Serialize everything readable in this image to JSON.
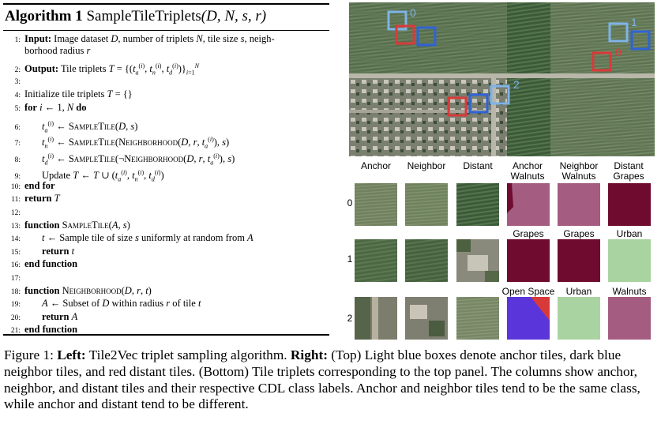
{
  "algorithm": {
    "label": "Algorithm 1",
    "name": "SampleTileTriplets",
    "signature": "(D, N, s, r)",
    "lines": [
      {
        "n": "1:",
        "text": "Input: Image dataset D, number of triplets N, tile size s, neigh-"
      },
      {
        "n": "",
        "text": "borhood radius r"
      },
      {
        "n": "2:",
        "text": "Output: Tile triplets T = {(t_a^(i), t_n^(i), t_d^(i))}_{i=1}^N"
      },
      {
        "n": "3:",
        "text": ""
      },
      {
        "n": "4:",
        "text": "Initialize tile triplets T = {}"
      },
      {
        "n": "5:",
        "text": "for i ← 1, N do"
      },
      {
        "n": "6:",
        "text": "t_a^(i) ← SampleTile(D, s)"
      },
      {
        "n": "7:",
        "text": "t_n^(i) ← SampleTile(Neighborhood(D, r, t_a^(i)), s)"
      },
      {
        "n": "8:",
        "text": "t_d^(i) ← SampleTile(¬Neighborhood(D, r, t_a^(i)), s)"
      },
      {
        "n": "9:",
        "text": "Update T ← T ∪ (t_a^(i), t_n^(i), t_d^(i))"
      },
      {
        "n": "10:",
        "text": "end for"
      },
      {
        "n": "11:",
        "text": "return T"
      },
      {
        "n": "12:",
        "text": ""
      },
      {
        "n": "13:",
        "text": "function SampleTile(A, s)"
      },
      {
        "n": "14:",
        "text": "t ← Sample tile of size s uniformly at random from A"
      },
      {
        "n": "15:",
        "text": "return t"
      },
      {
        "n": "16:",
        "text": "end function"
      },
      {
        "n": "17:",
        "text": ""
      },
      {
        "n": "18:",
        "text": "function Neighborhood(D, r, t)"
      },
      {
        "n": "19:",
        "text": "A ← Subset of D within radius r of tile t"
      },
      {
        "n": "20:",
        "text": "return A"
      },
      {
        "n": "21:",
        "text": "end function"
      }
    ]
  },
  "map": {
    "box_labels": [
      "0",
      "1",
      "0",
      "2"
    ],
    "colors": {
      "anchor": "#7fb3e8",
      "neighbor": "#2f63d6",
      "distant": "#d83a3a"
    }
  },
  "tiles": {
    "headers": [
      "Anchor",
      "Neighbor",
      "Distant",
      "Anchor Walnuts",
      "Neighbor Walnuts",
      "Distant Grapes"
    ],
    "row_labels": [
      "0",
      "1",
      "2"
    ],
    "class_labels_row1": [
      "Grapes",
      "Grapes",
      "Urban"
    ],
    "class_labels_row2": [
      "Open Space",
      "Urban",
      "Walnuts"
    ],
    "class_colors": {
      "walnuts": "#a45d80",
      "grapes": "#6e0b2e",
      "urban": "#aad3a2",
      "open_space": "#5a35d9"
    }
  },
  "caption": {
    "figure_label": "Figure 1:",
    "left_label": "Left:",
    "left_text": "Tile2Vec triplet sampling algorithm.",
    "right_label": "Right:",
    "right_text": "(Top) Light blue boxes denote anchor tiles, dark blue neighbor tiles, and red distant tiles. (Bottom) Tile triplets corresponding to the top panel. The columns show anchor, neighbor, and distant tiles and their respective CDL class labels. Anchor and neighbor tiles tend to be the same class, while anchor and distant tend to be different."
  }
}
